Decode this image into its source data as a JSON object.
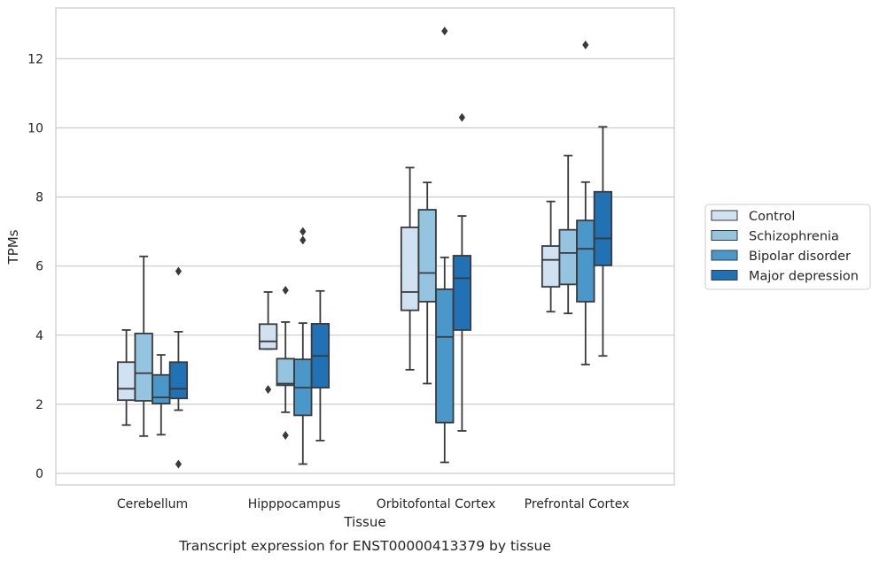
{
  "chart_data": {
    "type": "box",
    "caption": "Transcript expression for ENST00000413379 by tissue",
    "xlabel": "Tissue",
    "ylabel": "TPMs",
    "ylim": [
      -0.3,
      13.5
    ],
    "yticks": [
      0,
      2,
      4,
      6,
      8,
      10,
      12
    ],
    "grid": "horizontal",
    "legend_position": "right",
    "categories": [
      "Cerebellum",
      "Hipppocampus",
      "Orbitofontal Cortex",
      "Prefrontal Cortex"
    ],
    "series": [
      {
        "name": "Control",
        "color": "#d0e1f2",
        "boxes": [
          {
            "whisker_low": 1.4,
            "q1": 2.12,
            "median": 2.45,
            "q3": 3.22,
            "whisker_high": 4.15,
            "outliers": []
          },
          {
            "whisker_low": 3.6,
            "q1": 3.6,
            "median": 3.82,
            "q3": 4.32,
            "whisker_high": 5.25,
            "outliers": [
              2.43
            ]
          },
          {
            "whisker_low": 3.0,
            "q1": 4.72,
            "median": 5.25,
            "q3": 7.12,
            "whisker_high": 8.85,
            "outliers": []
          },
          {
            "whisker_low": 4.68,
            "q1": 5.4,
            "median": 6.18,
            "q3": 6.58,
            "whisker_high": 7.87,
            "outliers": []
          }
        ]
      },
      {
        "name": "Schizophrenia",
        "color": "#94c4df",
        "boxes": [
          {
            "whisker_low": 1.08,
            "q1": 2.1,
            "median": 2.9,
            "q3": 4.05,
            "whisker_high": 6.28,
            "outliers": []
          },
          {
            "whisker_low": 1.77,
            "q1": 2.55,
            "median": 2.6,
            "q3": 3.32,
            "whisker_high": 4.38,
            "outliers": [
              5.3,
              1.1
            ]
          },
          {
            "whisker_low": 2.6,
            "q1": 4.97,
            "median": 5.8,
            "q3": 7.63,
            "whisker_high": 8.42,
            "outliers": []
          },
          {
            "whisker_low": 4.63,
            "q1": 5.47,
            "median": 6.38,
            "q3": 7.05,
            "whisker_high": 9.2,
            "outliers": []
          }
        ]
      },
      {
        "name": "Bipolar disorder",
        "color": "#4a98c9",
        "boxes": [
          {
            "whisker_low": 1.12,
            "q1": 2.02,
            "median": 2.2,
            "q3": 2.85,
            "whisker_high": 3.43,
            "outliers": []
          },
          {
            "whisker_low": 0.27,
            "q1": 1.68,
            "median": 2.48,
            "q3": 3.3,
            "whisker_high": 4.35,
            "outliers": [
              6.75,
              7.0
            ]
          },
          {
            "whisker_low": 0.32,
            "q1": 1.47,
            "median": 3.95,
            "q3": 5.33,
            "whisker_high": 6.25,
            "outliers": [
              12.8
            ]
          },
          {
            "whisker_low": 3.15,
            "q1": 4.97,
            "median": 6.5,
            "q3": 7.32,
            "whisker_high": 8.43,
            "outliers": [
              12.4
            ]
          }
        ]
      },
      {
        "name": "Major depression",
        "color": "#2171b5",
        "boxes": [
          {
            "whisker_low": 1.83,
            "q1": 2.17,
            "median": 2.45,
            "q3": 3.22,
            "whisker_high": 4.1,
            "outliers": [
              5.85,
              0.27
            ]
          },
          {
            "whisker_low": 0.95,
            "q1": 2.48,
            "median": 3.4,
            "q3": 4.33,
            "whisker_high": 5.28,
            "outliers": []
          },
          {
            "whisker_low": 1.23,
            "q1": 4.15,
            "median": 5.65,
            "q3": 6.3,
            "whisker_high": 7.45,
            "outliers": [
              10.3
            ]
          },
          {
            "whisker_low": 3.4,
            "q1": 6.02,
            "median": 6.8,
            "q3": 8.15,
            "whisker_high": 10.03,
            "outliers": []
          }
        ]
      }
    ]
  },
  "colors": {
    "grid": "#cccccc",
    "frame": "#cccccc",
    "box_edge": "#3a3a3a",
    "text": "#262626"
  }
}
